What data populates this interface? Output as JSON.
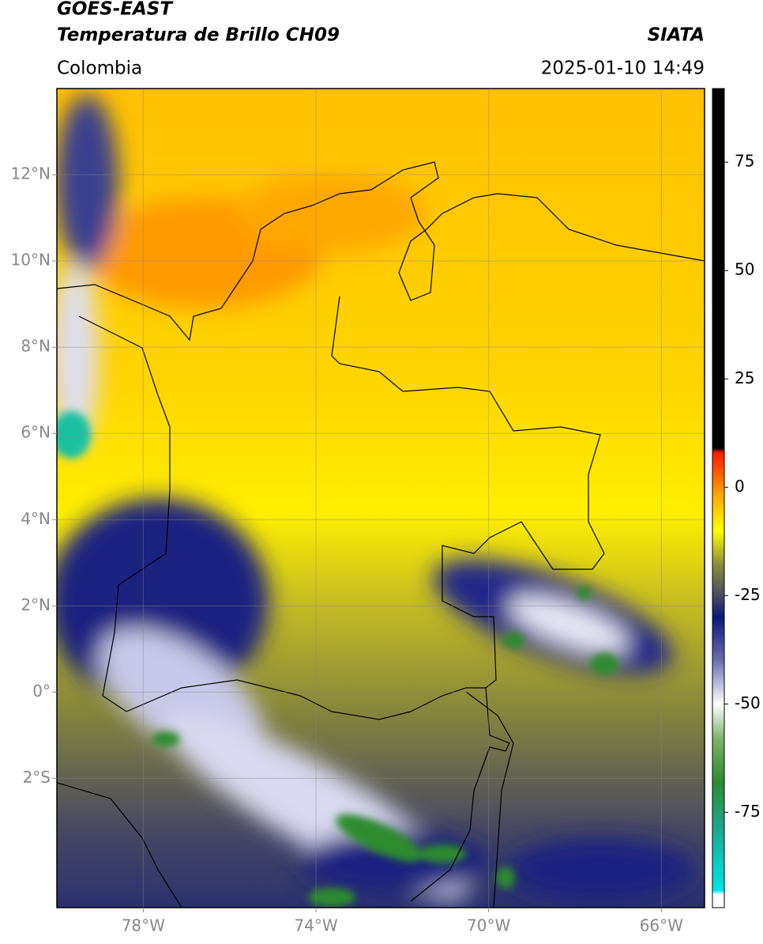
{
  "header": {
    "title": "GOES-EAST",
    "subtitle": "Temperatura de Brillo CH09",
    "source": "SIATA",
    "region": "Colombia",
    "datetime": "2025-01-10 14:49"
  },
  "map": {
    "xlim": [
      -80,
      -65
    ],
    "ylim": [
      -5,
      14
    ],
    "xticks": [
      {
        "value": -78,
        "label": "78°W"
      },
      {
        "value": -74,
        "label": "74°W"
      },
      {
        "value": -70,
        "label": "70°W"
      },
      {
        "value": -66,
        "label": "66°W"
      }
    ],
    "yticks": [
      {
        "value": 12,
        "label": "12°N"
      },
      {
        "value": 10,
        "label": "10°N"
      },
      {
        "value": 8,
        "label": "8°N"
      },
      {
        "value": 6,
        "label": "6°N"
      },
      {
        "value": 4,
        "label": "4°N"
      },
      {
        "value": 2,
        "label": "2°N"
      },
      {
        "value": 0,
        "label": "0°"
      },
      {
        "value": -2,
        "label": "2°S"
      }
    ],
    "grid": true
  },
  "colorbar": {
    "lim": [
      -97,
      92
    ],
    "ticks": [
      75,
      50,
      25,
      0,
      -25,
      -50,
      -75
    ],
    "colormap": [
      {
        "value": -97,
        "color": "#ffffff"
      },
      {
        "value": -94,
        "color": "#ffffff"
      },
      {
        "value": -93,
        "color": "#00e5e5"
      },
      {
        "value": -78,
        "color": "#1fa58a"
      },
      {
        "value": -68,
        "color": "#2e8b2e"
      },
      {
        "value": -58,
        "color": "#7cb36a"
      },
      {
        "value": -50,
        "color": "#ffffff"
      },
      {
        "value": -40,
        "color": "#6a6fb0"
      },
      {
        "value": -30,
        "color": "#0a1a7a"
      },
      {
        "value": -25,
        "color": "#4a4a60"
      },
      {
        "value": -18,
        "color": "#8a8a3a"
      },
      {
        "value": -10,
        "color": "#ffff00"
      },
      {
        "value": -2,
        "color": "#ffaa00"
      },
      {
        "value": 8,
        "color": "#ff1a00"
      },
      {
        "value": 9,
        "color": "#000000"
      },
      {
        "value": 92,
        "color": "#000000"
      }
    ]
  }
}
